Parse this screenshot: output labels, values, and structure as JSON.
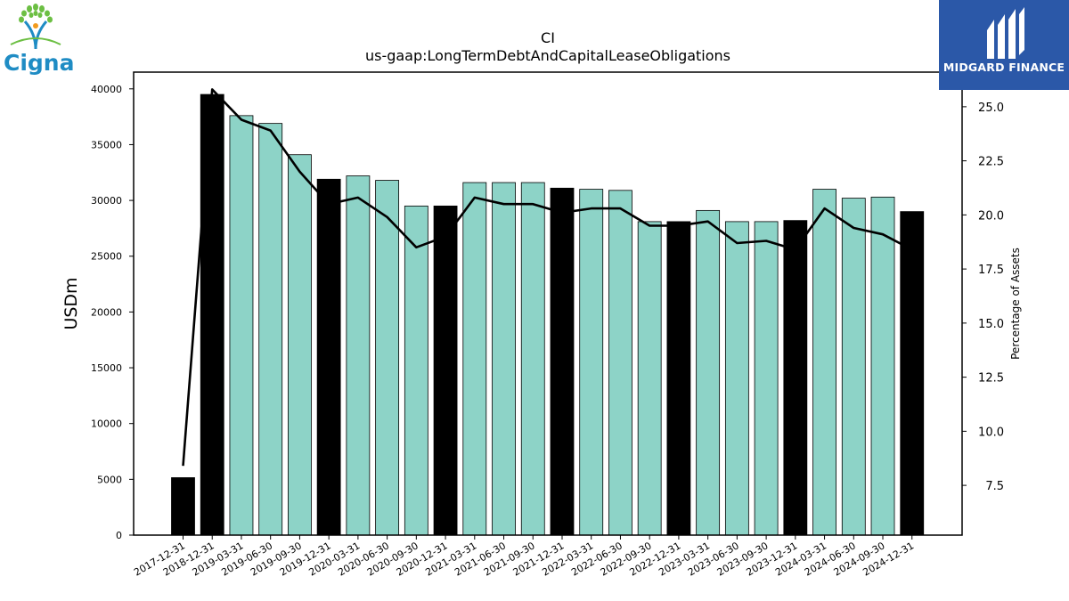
{
  "logos": {
    "left_name": "Cigna",
    "right_name": "MIDGARD FINANCE"
  },
  "colors": {
    "bar_annual": "#000000",
    "bar_quarter": "#8dd3c7",
    "line": "#000000",
    "brand_blue": "#2b58a8",
    "cigna_blue": "#1f8cc4",
    "cigna_green": "#6cbf43"
  },
  "chart_data": {
    "type": "bar",
    "title": "CI",
    "subtitle": "us-gaap:LongTermDebtAndCapitalLeaseObligations",
    "ylabel": "USDm",
    "y2label": "Percentage of Assets",
    "categories": [
      "2017-12-31",
      "2018-12-31",
      "2019-03-31",
      "2019-06-30",
      "2019-09-30",
      "2019-12-31",
      "2020-03-31",
      "2020-06-30",
      "2020-09-30",
      "2020-12-31",
      "2021-03-31",
      "2021-06-30",
      "2021-09-30",
      "2021-12-31",
      "2022-03-31",
      "2022-06-30",
      "2022-09-30",
      "2022-12-31",
      "2023-03-31",
      "2023-06-30",
      "2023-09-30",
      "2023-12-31",
      "2024-03-31",
      "2024-06-30",
      "2024-09-30",
      "2024-12-31"
    ],
    "series": [
      {
        "type": "bar",
        "values": [
          5150,
          39500,
          37600,
          36900,
          34100,
          31900,
          32200,
          31800,
          29500,
          29500,
          31600,
          31600,
          31600,
          31100,
          31000,
          30900,
          28100,
          28100,
          29100,
          28100,
          28100,
          28200,
          31000,
          30200,
          30300,
          29000
        ],
        "annual": [
          true,
          true,
          false,
          false,
          false,
          true,
          false,
          false,
          false,
          true,
          false,
          false,
          false,
          true,
          false,
          false,
          false,
          true,
          false,
          false,
          false,
          true,
          false,
          false,
          false,
          true
        ]
      },
      {
        "type": "line",
        "axis": "right",
        "values": [
          8.4,
          25.8,
          24.4,
          23.9,
          22.0,
          20.5,
          20.8,
          19.9,
          18.5,
          19.0,
          20.8,
          20.5,
          20.5,
          20.1,
          20.3,
          20.3,
          19.5,
          19.5,
          19.7,
          18.7,
          18.8,
          18.4,
          20.3,
          19.4,
          19.1,
          18.4
        ]
      }
    ],
    "ylim": [
      0,
      41500
    ],
    "y2lim": [
      5.2,
      26.6
    ],
    "yticks": [
      "0",
      "5000",
      "10000",
      "15000",
      "20000",
      "25000",
      "30000",
      "35000",
      "40000"
    ],
    "y2ticks": [
      "7.5",
      "10.0",
      "12.5",
      "15.0",
      "17.5",
      "20.0",
      "22.5",
      "25.0"
    ],
    "grid": false
  }
}
